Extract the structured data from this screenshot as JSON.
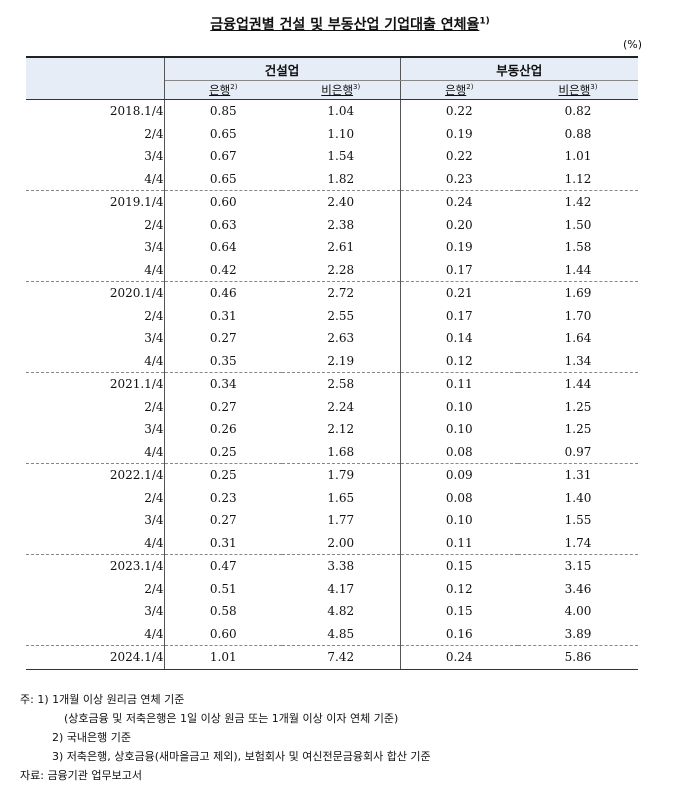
{
  "title": "금융업권별 건설 및 부동산업 기업대출 연체율",
  "title_sup": "1)",
  "unit": "(%)",
  "groups": [
    "건설업",
    "부동산업"
  ],
  "subheaders": [
    {
      "label": "은행",
      "sup": "2)"
    },
    {
      "label": "비은행",
      "sup": "3)"
    },
    {
      "label": "은행",
      "sup": "2)"
    },
    {
      "label": "비은행",
      "sup": "3)"
    }
  ],
  "rows": [
    {
      "period": "2018.1/4",
      "values": [
        "0.85",
        "1.04",
        "0.22",
        "0.82"
      ]
    },
    {
      "period": "2/4",
      "values": [
        "0.65",
        "1.10",
        "0.19",
        "0.88"
      ]
    },
    {
      "period": "3/4",
      "values": [
        "0.67",
        "1.54",
        "0.22",
        "1.01"
      ]
    },
    {
      "period": "4/4",
      "values": [
        "0.65",
        "1.82",
        "0.23",
        "1.12"
      ]
    },
    {
      "period": "2019.1/4",
      "values": [
        "0.60",
        "2.40",
        "0.24",
        "1.42"
      ]
    },
    {
      "period": "2/4",
      "values": [
        "0.63",
        "2.38",
        "0.20",
        "1.50"
      ]
    },
    {
      "period": "3/4",
      "values": [
        "0.64",
        "2.61",
        "0.19",
        "1.58"
      ]
    },
    {
      "period": "4/4",
      "values": [
        "0.42",
        "2.28",
        "0.17",
        "1.44"
      ]
    },
    {
      "period": "2020.1/4",
      "values": [
        "0.46",
        "2.72",
        "0.21",
        "1.69"
      ]
    },
    {
      "period": "2/4",
      "values": [
        "0.31",
        "2.55",
        "0.17",
        "1.70"
      ]
    },
    {
      "period": "3/4",
      "values": [
        "0.27",
        "2.63",
        "0.14",
        "1.64"
      ]
    },
    {
      "period": "4/4",
      "values": [
        "0.35",
        "2.19",
        "0.12",
        "1.34"
      ]
    },
    {
      "period": "2021.1/4",
      "values": [
        "0.34",
        "2.58",
        "0.11",
        "1.44"
      ]
    },
    {
      "period": "2/4",
      "values": [
        "0.27",
        "2.24",
        "0.10",
        "1.25"
      ]
    },
    {
      "period": "3/4",
      "values": [
        "0.26",
        "2.12",
        "0.10",
        "1.25"
      ]
    },
    {
      "period": "4/4",
      "values": [
        "0.25",
        "1.68",
        "0.08",
        "0.97"
      ]
    },
    {
      "period": "2022.1/4",
      "values": [
        "0.25",
        "1.79",
        "0.09",
        "1.31"
      ]
    },
    {
      "period": "2/4",
      "values": [
        "0.23",
        "1.65",
        "0.08",
        "1.40"
      ]
    },
    {
      "period": "3/4",
      "values": [
        "0.27",
        "1.77",
        "0.10",
        "1.55"
      ]
    },
    {
      "period": "4/4",
      "values": [
        "0.31",
        "2.00",
        "0.11",
        "1.74"
      ]
    },
    {
      "period": "2023.1/4",
      "values": [
        "0.47",
        "3.38",
        "0.15",
        "3.15"
      ]
    },
    {
      "period": "2/4",
      "values": [
        "0.51",
        "4.17",
        "0.12",
        "3.46"
      ]
    },
    {
      "period": "3/4",
      "values": [
        "0.58",
        "4.82",
        "0.15",
        "4.00"
      ]
    },
    {
      "period": "4/4",
      "values": [
        "0.60",
        "4.85",
        "0.16",
        "3.89"
      ]
    },
    {
      "period": "2024.1/4",
      "values": [
        "1.01",
        "7.42",
        "0.24",
        "5.86"
      ]
    }
  ],
  "notes": [
    "주: 1) 1개월 이상 원리금 연체 기준",
    "(상호금융 및 저축은행은 1일 이상 원금 또는 1개월 이상 이자 연체 기준)",
    "2) 국내은행 기준",
    "3) 저축은행, 상호금융(새마을금고 제외), 보험회사 및 여신전문금융회사 합산 기준",
    "자료: 금융기관 업무보고서"
  ]
}
